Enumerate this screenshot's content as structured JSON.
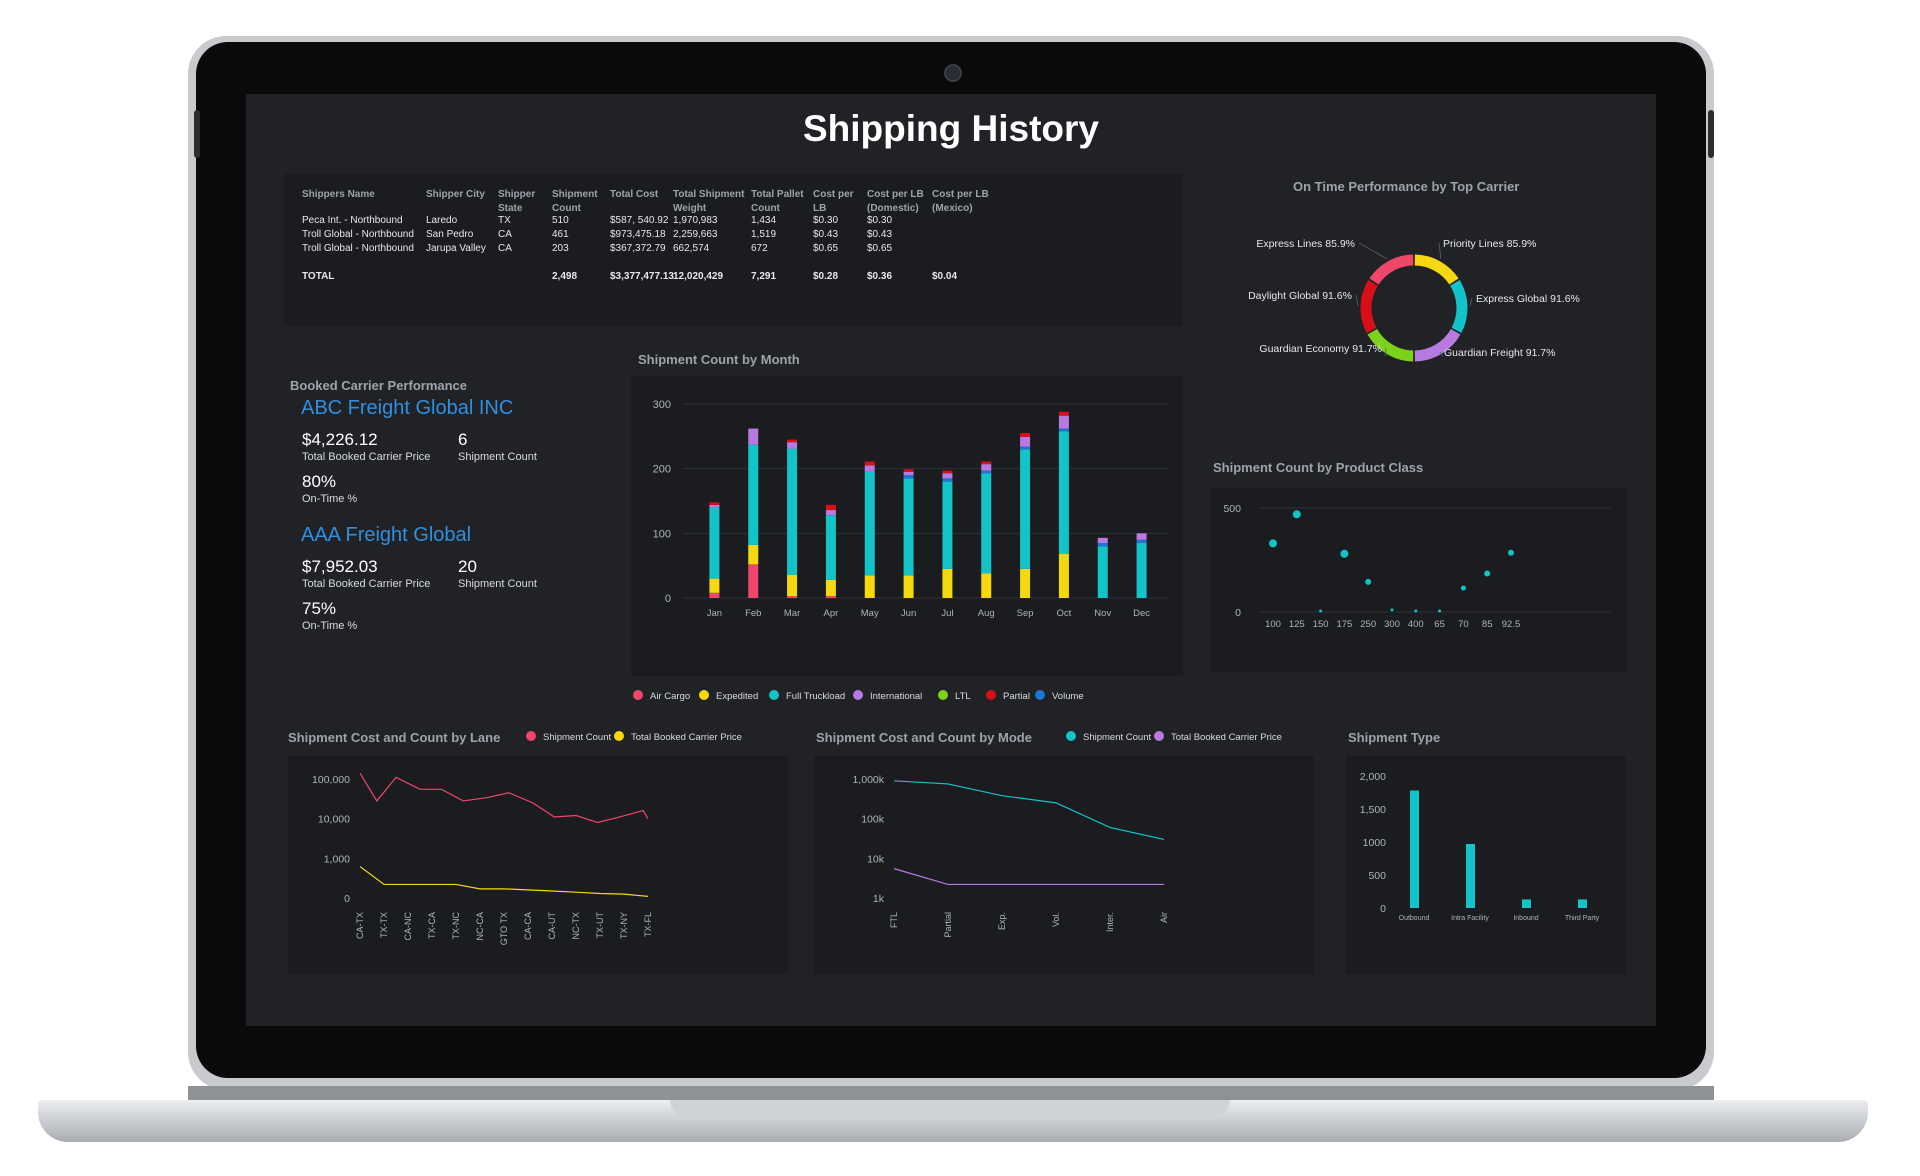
{
  "title": "Shipping History",
  "colors": {
    "air_cargo": "#f0466a",
    "expedited": "#f5d80f",
    "full_truckload": "#12c4c8",
    "international": "#b67ae0",
    "ltl": "#7ad21a",
    "partial": "#d90f18",
    "volume": "#1e74d4"
  },
  "table": {
    "headers": [
      [
        "Shippers Name"
      ],
      [
        "Shipper City"
      ],
      [
        "Shipper",
        "State"
      ],
      [
        "Shipment",
        "Count"
      ],
      [
        "Total Cost"
      ],
      [
        "Total Shipment",
        "Weight"
      ],
      [
        "Total Pallet",
        "Count"
      ],
      [
        "Cost per",
        "LB"
      ],
      [
        "Cost per LB",
        "(Domestic)"
      ],
      [
        "Cost per LB",
        "(Mexico)"
      ]
    ],
    "rows": [
      [
        "Peca Int. - Northbound",
        "Laredo",
        "TX",
        "510",
        "$587, 540.92",
        "1,970,983",
        "1,434",
        "$0.30",
        "$0.30",
        ""
      ],
      [
        "Troll Global - Northbound",
        "San Pedro",
        "CA",
        "461",
        "$973,475.18",
        "2,259,663",
        "1,519",
        "$0.43",
        "$0.43",
        ""
      ],
      [
        "Troll Global - Northbound",
        "Jarupa Valley",
        "CA",
        "203",
        "$367,372.79",
        "662,574",
        "672",
        "$0.65",
        "$0.65",
        ""
      ]
    ],
    "total": [
      "TOTAL",
      "",
      "",
      "2,498",
      "$3,377,477.13",
      "12,020,429",
      "7,291",
      "$0.28",
      "$0.36",
      "$0.04"
    ]
  },
  "booked": {
    "section_title": "Booked Carrier Performance",
    "carriers": [
      {
        "name": "ABC Freight Global INC",
        "price": "$4,226.12",
        "price_label": "Total Booked Carrier Price",
        "count": "6",
        "count_label": "Shipment Count",
        "ontime": "80%",
        "ontime_label": "On-Time %"
      },
      {
        "name": "AAA Freight Global",
        "price": "$7,952.03",
        "price_label": "Total Booked Carrier Price",
        "count": "20",
        "count_label": "Shipment Count",
        "ontime": "75%",
        "ontime_label": "On-Time %"
      }
    ]
  },
  "legends": {
    "month": [
      "Air Cargo",
      "Expedited",
      "Full Truckload",
      "International",
      "LTL",
      "Partial",
      "Volume"
    ],
    "lane": [
      "Shipment Count",
      "Total Booked Carrier Price"
    ],
    "mode": [
      "Shipment Count",
      "Total Booked Carrier Price"
    ]
  },
  "chart_data": [
    {
      "id": "month",
      "type": "bar",
      "title": "Shipment Count by Month",
      "stacked": true,
      "categories": [
        "Jan",
        "Feb",
        "Mar",
        "Apr",
        "May",
        "Jun",
        "Jul",
        "Aug",
        "Sep",
        "Oct",
        "Nov",
        "Dec"
      ],
      "ylim": [
        0,
        300
      ],
      "yticks": [
        "0",
        "100",
        "200",
        "300"
      ],
      "series": [
        {
          "name": "Air Cargo",
          "values": [
            8,
            52,
            3,
            3,
            0,
            0,
            0,
            0,
            0,
            0,
            0,
            0
          ]
        },
        {
          "name": "Expedited",
          "values": [
            22,
            30,
            33,
            25,
            35,
            35,
            45,
            38,
            45,
            68,
            0,
            0
          ]
        },
        {
          "name": "Full Truckload",
          "values": [
            110,
            155,
            195,
            100,
            160,
            150,
            135,
            155,
            185,
            190,
            80,
            85
          ]
        },
        {
          "name": "Volume",
          "values": [
            0,
            0,
            0,
            0,
            0,
            5,
            5,
            4,
            4,
            4,
            5,
            5
          ]
        },
        {
          "name": "International",
          "values": [
            4,
            25,
            10,
            8,
            10,
            5,
            8,
            10,
            15,
            20,
            8,
            10
          ]
        },
        {
          "name": "Partial",
          "values": [
            4,
            0,
            4,
            8,
            6,
            4,
            4,
            4,
            6,
            6,
            0,
            0
          ]
        }
      ],
      "grid": true,
      "legend": "bottom"
    },
    {
      "id": "ontime",
      "type": "pie",
      "title": "On Time Performance by Top Carrier",
      "slices": [
        {
          "name": "Priority Lines",
          "label": "Priority Lines 85.9%",
          "value": 85.9,
          "color": "#f5d80f"
        },
        {
          "name": "Express Global",
          "label": "Express  Global 91.6%",
          "value": 91.6,
          "color": "#12c4c8"
        },
        {
          "name": "Guardian Freight",
          "label": "Guardian Freight 91.7%",
          "value": 91.7,
          "color": "#b67ae0"
        },
        {
          "name": "Guardian Economy",
          "label": "Guardian Economy 91.7%",
          "value": 91.7,
          "color": "#7ad21a"
        },
        {
          "name": "Daylight Global",
          "label": "Daylight Global 91.6%",
          "value": 91.6,
          "color": "#d90f18"
        },
        {
          "name": "Express Lines",
          "label": "Express Lines 85.9%",
          "value": 85.9,
          "color": "#f0466a"
        }
      ]
    },
    {
      "id": "product",
      "type": "scatter",
      "title": "Shipment Count by Product Class",
      "categories": [
        "100",
        "125",
        "150",
        "175",
        "250",
        "300",
        "400",
        "65",
        "70",
        "85",
        "92.5"
      ],
      "values": [
        330,
        470,
        5,
        280,
        145,
        10,
        5,
        5,
        115,
        185,
        285
      ],
      "sizes": [
        8,
        8,
        3,
        8,
        6,
        3,
        3,
        3,
        5,
        6,
        6
      ],
      "ylim": [
        0,
        500
      ],
      "yticks": [
        "0",
        "500"
      ]
    },
    {
      "id": "lane",
      "type": "line",
      "title": "Shipment Cost and Count by Lane",
      "log_scale": true,
      "categories": [
        "CA-TX",
        "TX-TX",
        "CA-NC",
        "TX-CA",
        "TX-NC",
        "NC-CA",
        "GTO TX",
        "CA-CA",
        "CA-UT",
        "NC-TX",
        "TX-UT",
        "TX-NY",
        "TX-FL"
      ],
      "yticks": [
        "0",
        "1,000",
        "10,000",
        "100,000"
      ],
      "series": [
        {
          "name": "Shipment Count",
          "values": [
            140000,
            28000,
            110000,
            55000,
            55000,
            28000,
            34000,
            45000,
            25000,
            11000,
            12000,
            8000,
            11000,
            16000,
            10000
          ],
          "x": [
            0,
            0.7,
            1.5,
            2.5,
            3.4,
            4.3,
            5.3,
            6.2,
            7.2,
            8.1,
            9.0,
            9.9,
            10.8,
            11.8,
            12.7
          ]
        },
        {
          "name": "Total Booked Carrier Price",
          "values": [
            620,
            220,
            220,
            220,
            220,
            170,
            170,
            160,
            150,
            140,
            130,
            125,
            110
          ]
        }
      ],
      "legend": "top"
    },
    {
      "id": "mode",
      "type": "line",
      "title": "Shipment Cost and Count by Mode",
      "log_scale": true,
      "categories": [
        "FTL",
        "Partial",
        "Exp.",
        "Vol.",
        "Inter.",
        "Air"
      ],
      "yticks": [
        "1k",
        "10k",
        "100k",
        "1,000k"
      ],
      "series": [
        {
          "name": "Shipment Count",
          "values": [
            900000,
            750000,
            380000,
            250000,
            60000,
            30000
          ],
          "x": [
            0,
            1,
            2,
            3,
            4,
            5.2
          ]
        },
        {
          "name": "Total Booked Carrier Price",
          "values": [
            5500,
            2200,
            2200,
            2200,
            2200,
            2200
          ],
          "x": [
            0,
            1,
            2,
            3,
            4,
            5.2
          ]
        }
      ],
      "legend": "top"
    },
    {
      "id": "stype",
      "type": "bar",
      "title": "Shipment Type",
      "categories": [
        "Outbound",
        "Intra Facility",
        "Inbound",
        "Third Party"
      ],
      "values": [
        1780,
        970,
        130,
        130
      ],
      "ylim": [
        0,
        2000
      ],
      "yticks": [
        "0",
        "500",
        "1000",
        "1,500",
        "2,000"
      ]
    }
  ]
}
